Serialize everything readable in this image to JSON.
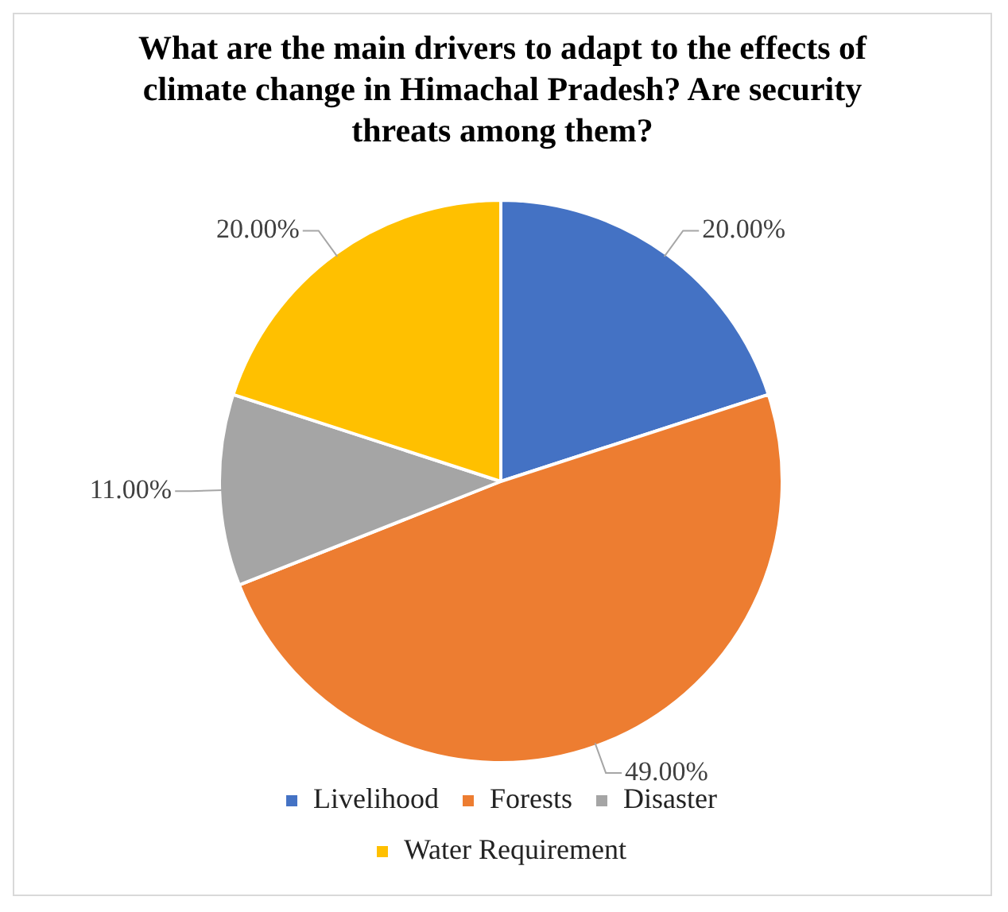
{
  "chart_data": {
    "type": "pie",
    "title": "What are the main drivers to adapt to the effects of climate change in Himachal Pradesh? Are security threats among them?",
    "categories": [
      "Livelihood",
      "Forests",
      "Disaster",
      "Water Requirement"
    ],
    "values": [
      20,
      49,
      11,
      20
    ],
    "colors": [
      "#4472c4",
      "#ed7d31",
      "#a5a5a5",
      "#ffc000"
    ],
    "value_labels": [
      "20.00%",
      "49.00%",
      "11.00%",
      "20.00%"
    ],
    "legend": "bottom"
  }
}
